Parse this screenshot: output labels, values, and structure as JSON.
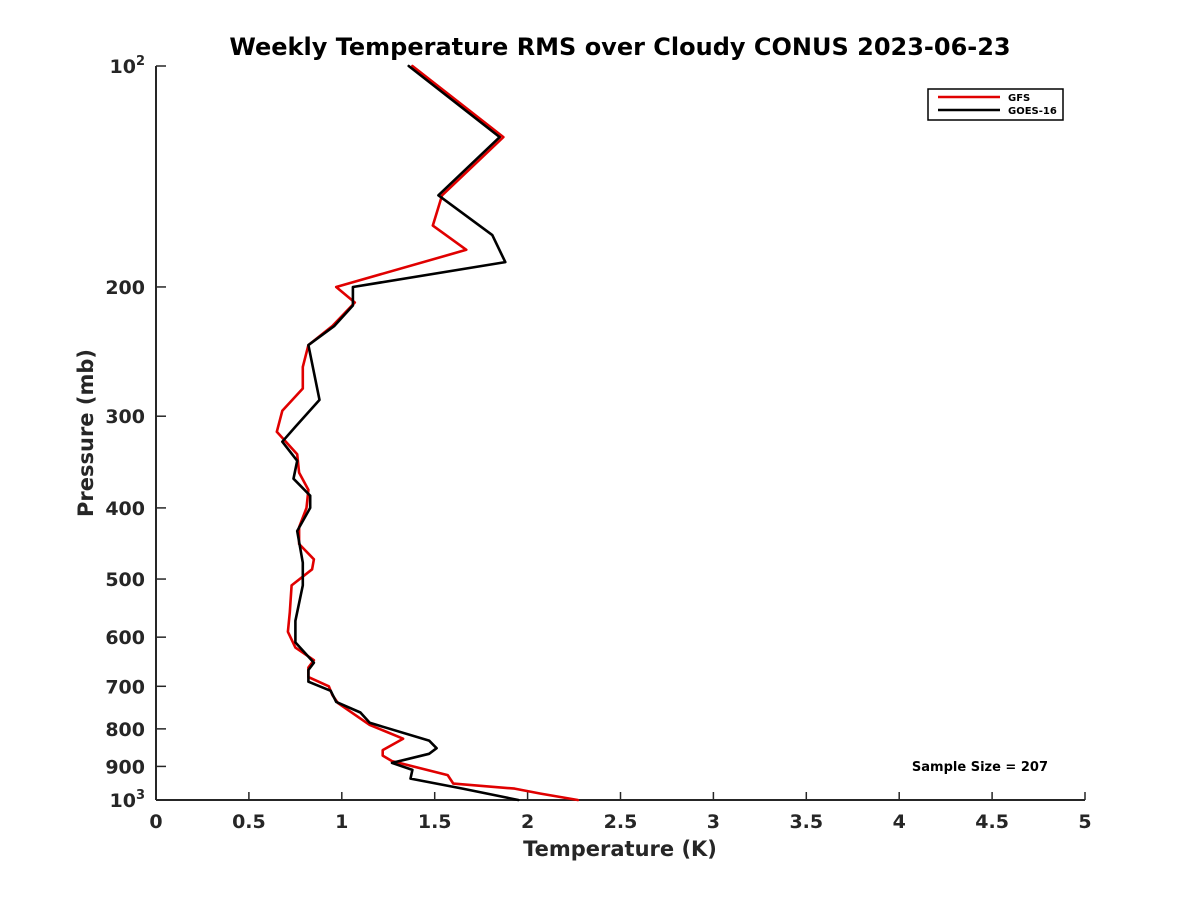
{
  "chart_data": {
    "type": "line",
    "title": "Weekly Temperature RMS over Cloudy CONUS 2023-06-23",
    "xlabel": "Temperature (K)",
    "ylabel": "Pressure (mb)",
    "xlim": [
      0,
      5
    ],
    "ylim": [
      100,
      1000
    ],
    "y_scale": "log",
    "y_reversed": true,
    "x_ticks": [
      "0",
      "0.5",
      "1",
      "1.5",
      "2",
      "2.5",
      "3",
      "3.5",
      "4",
      "4.5",
      "5"
    ],
    "x_tick_values": [
      0,
      0.5,
      1,
      1.5,
      2,
      2.5,
      3,
      3.5,
      4,
      4.5,
      5
    ],
    "y_ticks": [
      {
        "value": 100,
        "base": "10",
        "exp": "2"
      },
      {
        "value": 200,
        "base": "200",
        "exp": ""
      },
      {
        "value": 300,
        "base": "300",
        "exp": ""
      },
      {
        "value": 400,
        "base": "400",
        "exp": ""
      },
      {
        "value": 500,
        "base": "500",
        "exp": ""
      },
      {
        "value": 600,
        "base": "600",
        "exp": ""
      },
      {
        "value": 700,
        "base": "700",
        "exp": ""
      },
      {
        "value": 800,
        "base": "800",
        "exp": ""
      },
      {
        "value": 900,
        "base": "900",
        "exp": ""
      },
      {
        "value": 1000,
        "base": "10",
        "exp": "3"
      }
    ],
    "grid": false,
    "legend_position": "top-right",
    "annotation": "Sample Size = 207",
    "series": [
      {
        "name": "GFS",
        "color": "#e00000",
        "points": [
          [
            1.38,
            100
          ],
          [
            1.87,
            125
          ],
          [
            1.54,
            150
          ],
          [
            1.49,
            165
          ],
          [
            1.67,
            178
          ],
          [
            0.97,
            200
          ],
          [
            1.07,
            210
          ],
          [
            0.95,
            226
          ],
          [
            0.82,
            240
          ],
          [
            0.79,
            257
          ],
          [
            0.79,
            275
          ],
          [
            0.68,
            295
          ],
          [
            0.65,
            315
          ],
          [
            0.76,
            338
          ],
          [
            0.77,
            358
          ],
          [
            0.82,
            378
          ],
          [
            0.81,
            400
          ],
          [
            0.77,
            425
          ],
          [
            0.77,
            448
          ],
          [
            0.85,
            470
          ],
          [
            0.84,
            485
          ],
          [
            0.73,
            510
          ],
          [
            0.72,
            555
          ],
          [
            0.71,
            590
          ],
          [
            0.75,
            620
          ],
          [
            0.85,
            645
          ],
          [
            0.82,
            660
          ],
          [
            0.82,
            680
          ],
          [
            0.93,
            700
          ],
          [
            0.95,
            720
          ],
          [
            0.98,
            738
          ],
          [
            1.15,
            790
          ],
          [
            1.33,
            825
          ],
          [
            1.22,
            855
          ],
          [
            1.22,
            870
          ],
          [
            1.27,
            885
          ],
          [
            1.57,
            925
          ],
          [
            1.6,
            950
          ],
          [
            1.93,
            965
          ],
          [
            2.07,
            980
          ],
          [
            2.27,
            1000
          ]
        ]
      },
      {
        "name": "GOES-16",
        "color": "#000000",
        "points": [
          [
            1.36,
            100
          ],
          [
            1.85,
            125
          ],
          [
            1.52,
            150
          ],
          [
            1.81,
            170
          ],
          [
            1.88,
            185
          ],
          [
            1.06,
            200
          ],
          [
            1.06,
            212
          ],
          [
            0.96,
            226
          ],
          [
            0.82,
            240
          ],
          [
            0.88,
            285
          ],
          [
            0.75,
            310
          ],
          [
            0.68,
            325
          ],
          [
            0.76,
            345
          ],
          [
            0.74,
            365
          ],
          [
            0.83,
            385
          ],
          [
            0.83,
            400
          ],
          [
            0.76,
            430
          ],
          [
            0.79,
            475
          ],
          [
            0.79,
            510
          ],
          [
            0.75,
            570
          ],
          [
            0.75,
            610
          ],
          [
            0.85,
            650
          ],
          [
            0.82,
            665
          ],
          [
            0.82,
            690
          ],
          [
            0.94,
            710
          ],
          [
            0.97,
            735
          ],
          [
            1.1,
            760
          ],
          [
            1.15,
            785
          ],
          [
            1.47,
            830
          ],
          [
            1.51,
            850
          ],
          [
            1.47,
            865
          ],
          [
            1.27,
            890
          ],
          [
            1.38,
            910
          ],
          [
            1.37,
            935
          ],
          [
            1.65,
            965
          ],
          [
            1.95,
            1000
          ]
        ]
      }
    ]
  }
}
